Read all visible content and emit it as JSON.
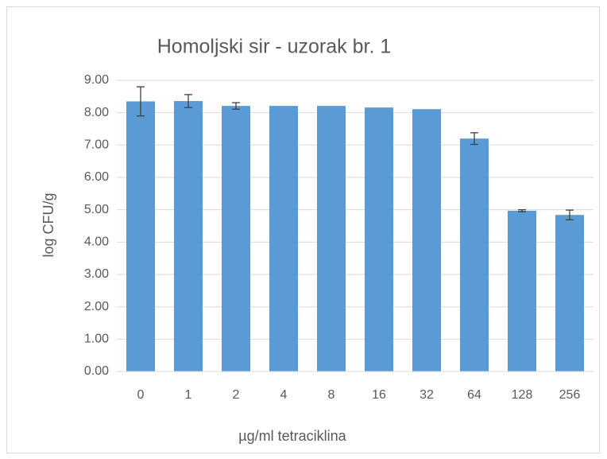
{
  "chart_data": {
    "type": "bar",
    "title": "Homoljski sir - uzorak br. 1",
    "x_label": "µg/ml tetraciklina",
    "y_label": "log CFU/g",
    "categories": [
      "0",
      "1",
      "2",
      "4",
      "8",
      "16",
      "32",
      "64",
      "128",
      "256"
    ],
    "values": [
      8.35,
      8.36,
      8.21,
      8.21,
      8.21,
      8.16,
      8.11,
      7.2,
      4.97,
      4.84
    ],
    "errors": [
      0.45,
      0.2,
      0.1,
      0,
      0,
      0,
      0,
      0.18,
      0.03,
      0.15
    ],
    "color": "#5b9bd5",
    "error_color": "#404040",
    "ylim": [
      0,
      9
    ],
    "yticks": [
      {
        "value": 0,
        "label": "0.00"
      },
      {
        "value": 1,
        "label": "1.00"
      },
      {
        "value": 2,
        "label": "2.00"
      },
      {
        "value": 3,
        "label": "3.00"
      },
      {
        "value": 4,
        "label": "4.00"
      },
      {
        "value": 5,
        "label": "5.00"
      },
      {
        "value": 6,
        "label": "6.00"
      },
      {
        "value": 7,
        "label": "7.00"
      },
      {
        "value": 8,
        "label": "8.00"
      },
      {
        "value": 9,
        "label": "9.00"
      }
    ],
    "grid": true
  }
}
